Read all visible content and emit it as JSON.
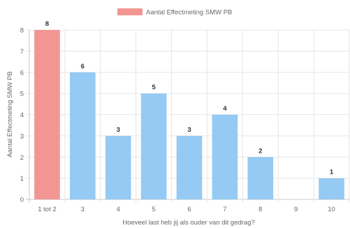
{
  "chart_data": {
    "type": "bar",
    "title": "",
    "xlabel": "Hoeveel last heb jij als ouder van dit gedrag?",
    "ylabel": "Aantal Effectmeting SMW PB",
    "categories": [
      "1 tot 2",
      "3",
      "4",
      "5",
      "6",
      "7",
      "8",
      "9",
      "10"
    ],
    "series": [
      {
        "name": "Aantal Effectmeting SMW PB",
        "values": [
          8,
          6,
          3,
          5,
          3,
          4,
          2,
          0,
          1
        ],
        "data_labels": [
          "8",
          "6",
          "3",
          "5",
          "3",
          "4",
          "2",
          "",
          "1"
        ]
      }
    ],
    "bar_colors": [
      "#f29593",
      "#94caf3",
      "#94caf3",
      "#94caf3",
      "#94caf3",
      "#94caf3",
      "#94caf3",
      "#94caf3",
      "#94caf3"
    ],
    "legend_color": "#f29593",
    "ylim": [
      0,
      8
    ],
    "yticks": [
      "0",
      "1",
      "2",
      "3",
      "4",
      "5",
      "6",
      "7",
      "8"
    ],
    "grid": true,
    "legend_position": "top"
  }
}
